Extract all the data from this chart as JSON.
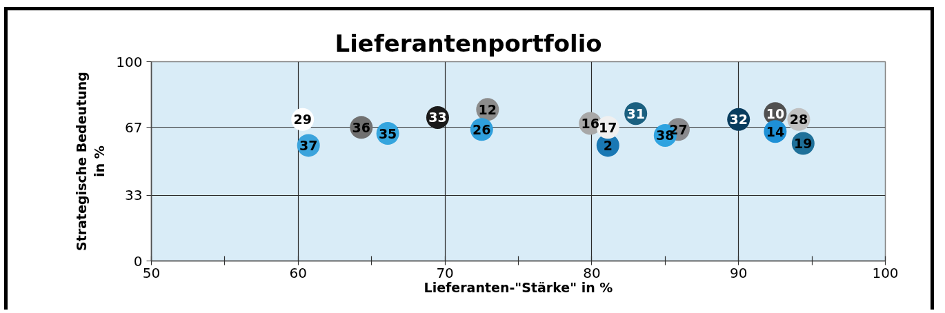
{
  "chart_data": {
    "type": "scatter",
    "title": "Lieferantenportfolio",
    "xlabel": "Lieferanten-\"Stärke\" in %",
    "ylabel": "Strategische Bedeutung in %",
    "xlim": [
      50,
      100
    ],
    "ylim": [
      0,
      100
    ],
    "xticks": [
      50,
      {
        "value": 55,
        "label": null
      },
      60,
      {
        "value": 65,
        "label": null
      },
      70,
      {
        "value": 75,
        "label": null
      },
      80,
      {
        "value": 85,
        "label": null
      },
      90,
      {
        "value": 95,
        "label": null
      },
      100
    ],
    "yticks": [
      0,
      33,
      67,
      100
    ],
    "grid": true,
    "marker": "circle",
    "series": [
      {
        "name": "37",
        "color": "#3ba3dc",
        "x": [
          60.7
        ],
        "values": [
          58
        ]
      },
      {
        "name": "29",
        "color": "#ffffff",
        "x": [
          60.3
        ],
        "values": [
          71
        ]
      },
      {
        "name": "36",
        "color": "#707070",
        "x": [
          64.3
        ],
        "values": [
          67
        ]
      },
      {
        "name": "35",
        "color": "#35a5de",
        "x": [
          66.1
        ],
        "values": [
          64
        ]
      },
      {
        "name": "33",
        "color": "#1a1a1a",
        "x": [
          69.5
        ],
        "values": [
          72
        ]
      },
      {
        "name": "12",
        "color": "#8c8c8c",
        "x": [
          72.9
        ],
        "values": [
          76
        ]
      },
      {
        "name": "26",
        "color": "#2f9fdc",
        "x": [
          72.5
        ],
        "values": [
          66
        ]
      },
      {
        "name": "2",
        "color": "#1a78b4",
        "x": [
          81.1
        ],
        "values": [
          58
        ]
      },
      {
        "name": "16",
        "color": "#a8a8a8",
        "x": [
          79.9
        ],
        "values": [
          69
        ]
      },
      {
        "name": "17",
        "color": "#f0f0f0",
        "x": [
          81.1
        ],
        "values": [
          67
        ]
      },
      {
        "name": "31",
        "color": "#1b6080",
        "x": [
          83.0
        ],
        "values": [
          74
        ]
      },
      {
        "name": "27",
        "color": "#8a8a8e",
        "x": [
          85.9
        ],
        "values": [
          66
        ]
      },
      {
        "name": "38",
        "color": "#2fa3e0",
        "x": [
          85.0
        ],
        "values": [
          63
        ]
      },
      {
        "name": "32",
        "color": "#083c5e",
        "x": [
          90.0
        ],
        "values": [
          71
        ]
      },
      {
        "name": "10",
        "color": "#505050",
        "x": [
          92.5
        ],
        "values": [
          74
        ]
      },
      {
        "name": "28",
        "color": "#c0c0c0",
        "x": [
          94.1
        ],
        "values": [
          71
        ]
      },
      {
        "name": "19",
        "color": "#1f7099",
        "x": [
          94.4
        ],
        "values": [
          59
        ]
      },
      {
        "name": "14",
        "color": "#1e90d6",
        "x": [
          92.5
        ],
        "values": [
          65
        ]
      }
    ]
  }
}
